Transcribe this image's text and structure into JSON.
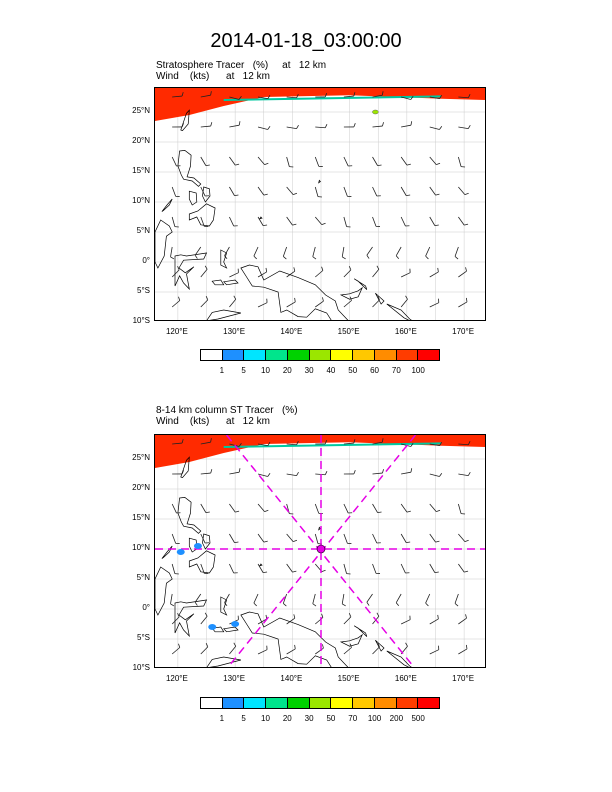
{
  "title": "2014-01-18_03:00:00",
  "panels": [
    {
      "title_line1": "Stratosphere Tracer   (%)     at   12 km",
      "title_line2": "Wind    (kts)      at   12 km"
    },
    {
      "title_line1": "8-14 km column ST Tracer   (%)",
      "title_line2": "Wind    (kts)      at   12 km"
    }
  ],
  "lat_labels": [
    "25°N",
    "20°N",
    "15°N",
    "10°N",
    "5°N",
    "0°",
    "5°S",
    "10°S"
  ],
  "lon_labels": [
    "120°E",
    "130°E",
    "140°E",
    "150°E",
    "160°E",
    "170°E"
  ],
  "colorbar1": {
    "colors": [
      "#ffffff",
      "#1e90ff",
      "#00e5ff",
      "#00e58c",
      "#00d200",
      "#9be600",
      "#ffff00",
      "#ffc800",
      "#ff8c00",
      "#ff3c00",
      "#ff0000"
    ],
    "labels": [
      "1",
      "5",
      "10",
      "20",
      "30",
      "40",
      "50",
      "60",
      "70",
      "100"
    ]
  },
  "colorbar2": {
    "colors": [
      "#ffffff",
      "#1e90ff",
      "#00e5ff",
      "#00e58c",
      "#00d200",
      "#9be600",
      "#ffff00",
      "#ffc800",
      "#ff8c00",
      "#ff3c00",
      "#ff0000"
    ],
    "labels": [
      "1",
      "5",
      "10",
      "20",
      "30",
      "50",
      "70",
      "100",
      "200",
      "500"
    ]
  },
  "map_colors": {
    "land": "#000000",
    "grid": "#cccccc",
    "tracer": "#ff2a00",
    "cross_section": "#e600e6"
  },
  "cross_section_center": {
    "lon": 145,
    "lat": 10
  }
}
